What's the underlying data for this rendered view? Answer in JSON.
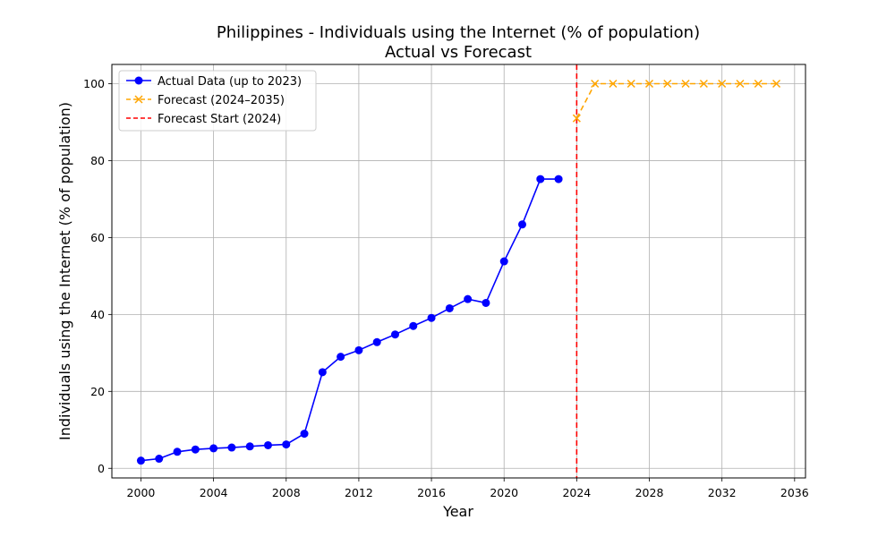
{
  "chart_data": {
    "type": "line",
    "title": "Philippines - Individuals using the Internet (% of population)",
    "subtitle": "Actual vs Forecast",
    "xlabel": "Year",
    "ylabel": "Individuals using the Internet (% of population)",
    "xlim": [
      1998.4,
      2036.6
    ],
    "ylim": [
      -2.5,
      105
    ],
    "xticks": [
      2000,
      2004,
      2008,
      2012,
      2016,
      2020,
      2024,
      2028,
      2032,
      2036
    ],
    "yticks": [
      0,
      20,
      40,
      60,
      80,
      100
    ],
    "grid": true,
    "legend_position": "top-left",
    "series": [
      {
        "name": "Actual Data (up to 2023)",
        "color": "#0000ff",
        "marker": "circle",
        "line_style": "solid",
        "x": [
          2000,
          2001,
          2002,
          2003,
          2004,
          2005,
          2006,
          2007,
          2008,
          2009,
          2010,
          2011,
          2012,
          2013,
          2014,
          2015,
          2016,
          2017,
          2018,
          2019,
          2020,
          2021,
          2022,
          2023
        ],
        "y": [
          2.0,
          2.5,
          4.3,
          4.9,
          5.2,
          5.4,
          5.7,
          6.0,
          6.2,
          9.0,
          25.0,
          29.0,
          30.7,
          32.8,
          34.8,
          37.0,
          39.1,
          41.6,
          44.0,
          43.0,
          53.8,
          63.4,
          75.2,
          75.2
        ]
      },
      {
        "name": "Forecast (2024–2035)",
        "color": "#ffa500",
        "marker": "x",
        "line_style": "dashed",
        "x": [
          2024,
          2025,
          2026,
          2027,
          2028,
          2029,
          2030,
          2031,
          2032,
          2033,
          2034,
          2035
        ],
        "y": [
          91.0,
          100,
          100,
          100,
          100,
          100,
          100,
          100,
          100,
          100,
          100,
          100
        ]
      }
    ],
    "vline": {
      "name": "Forecast Start (2024)",
      "x": 2024,
      "color": "#ff0000",
      "line_style": "dashed"
    }
  }
}
